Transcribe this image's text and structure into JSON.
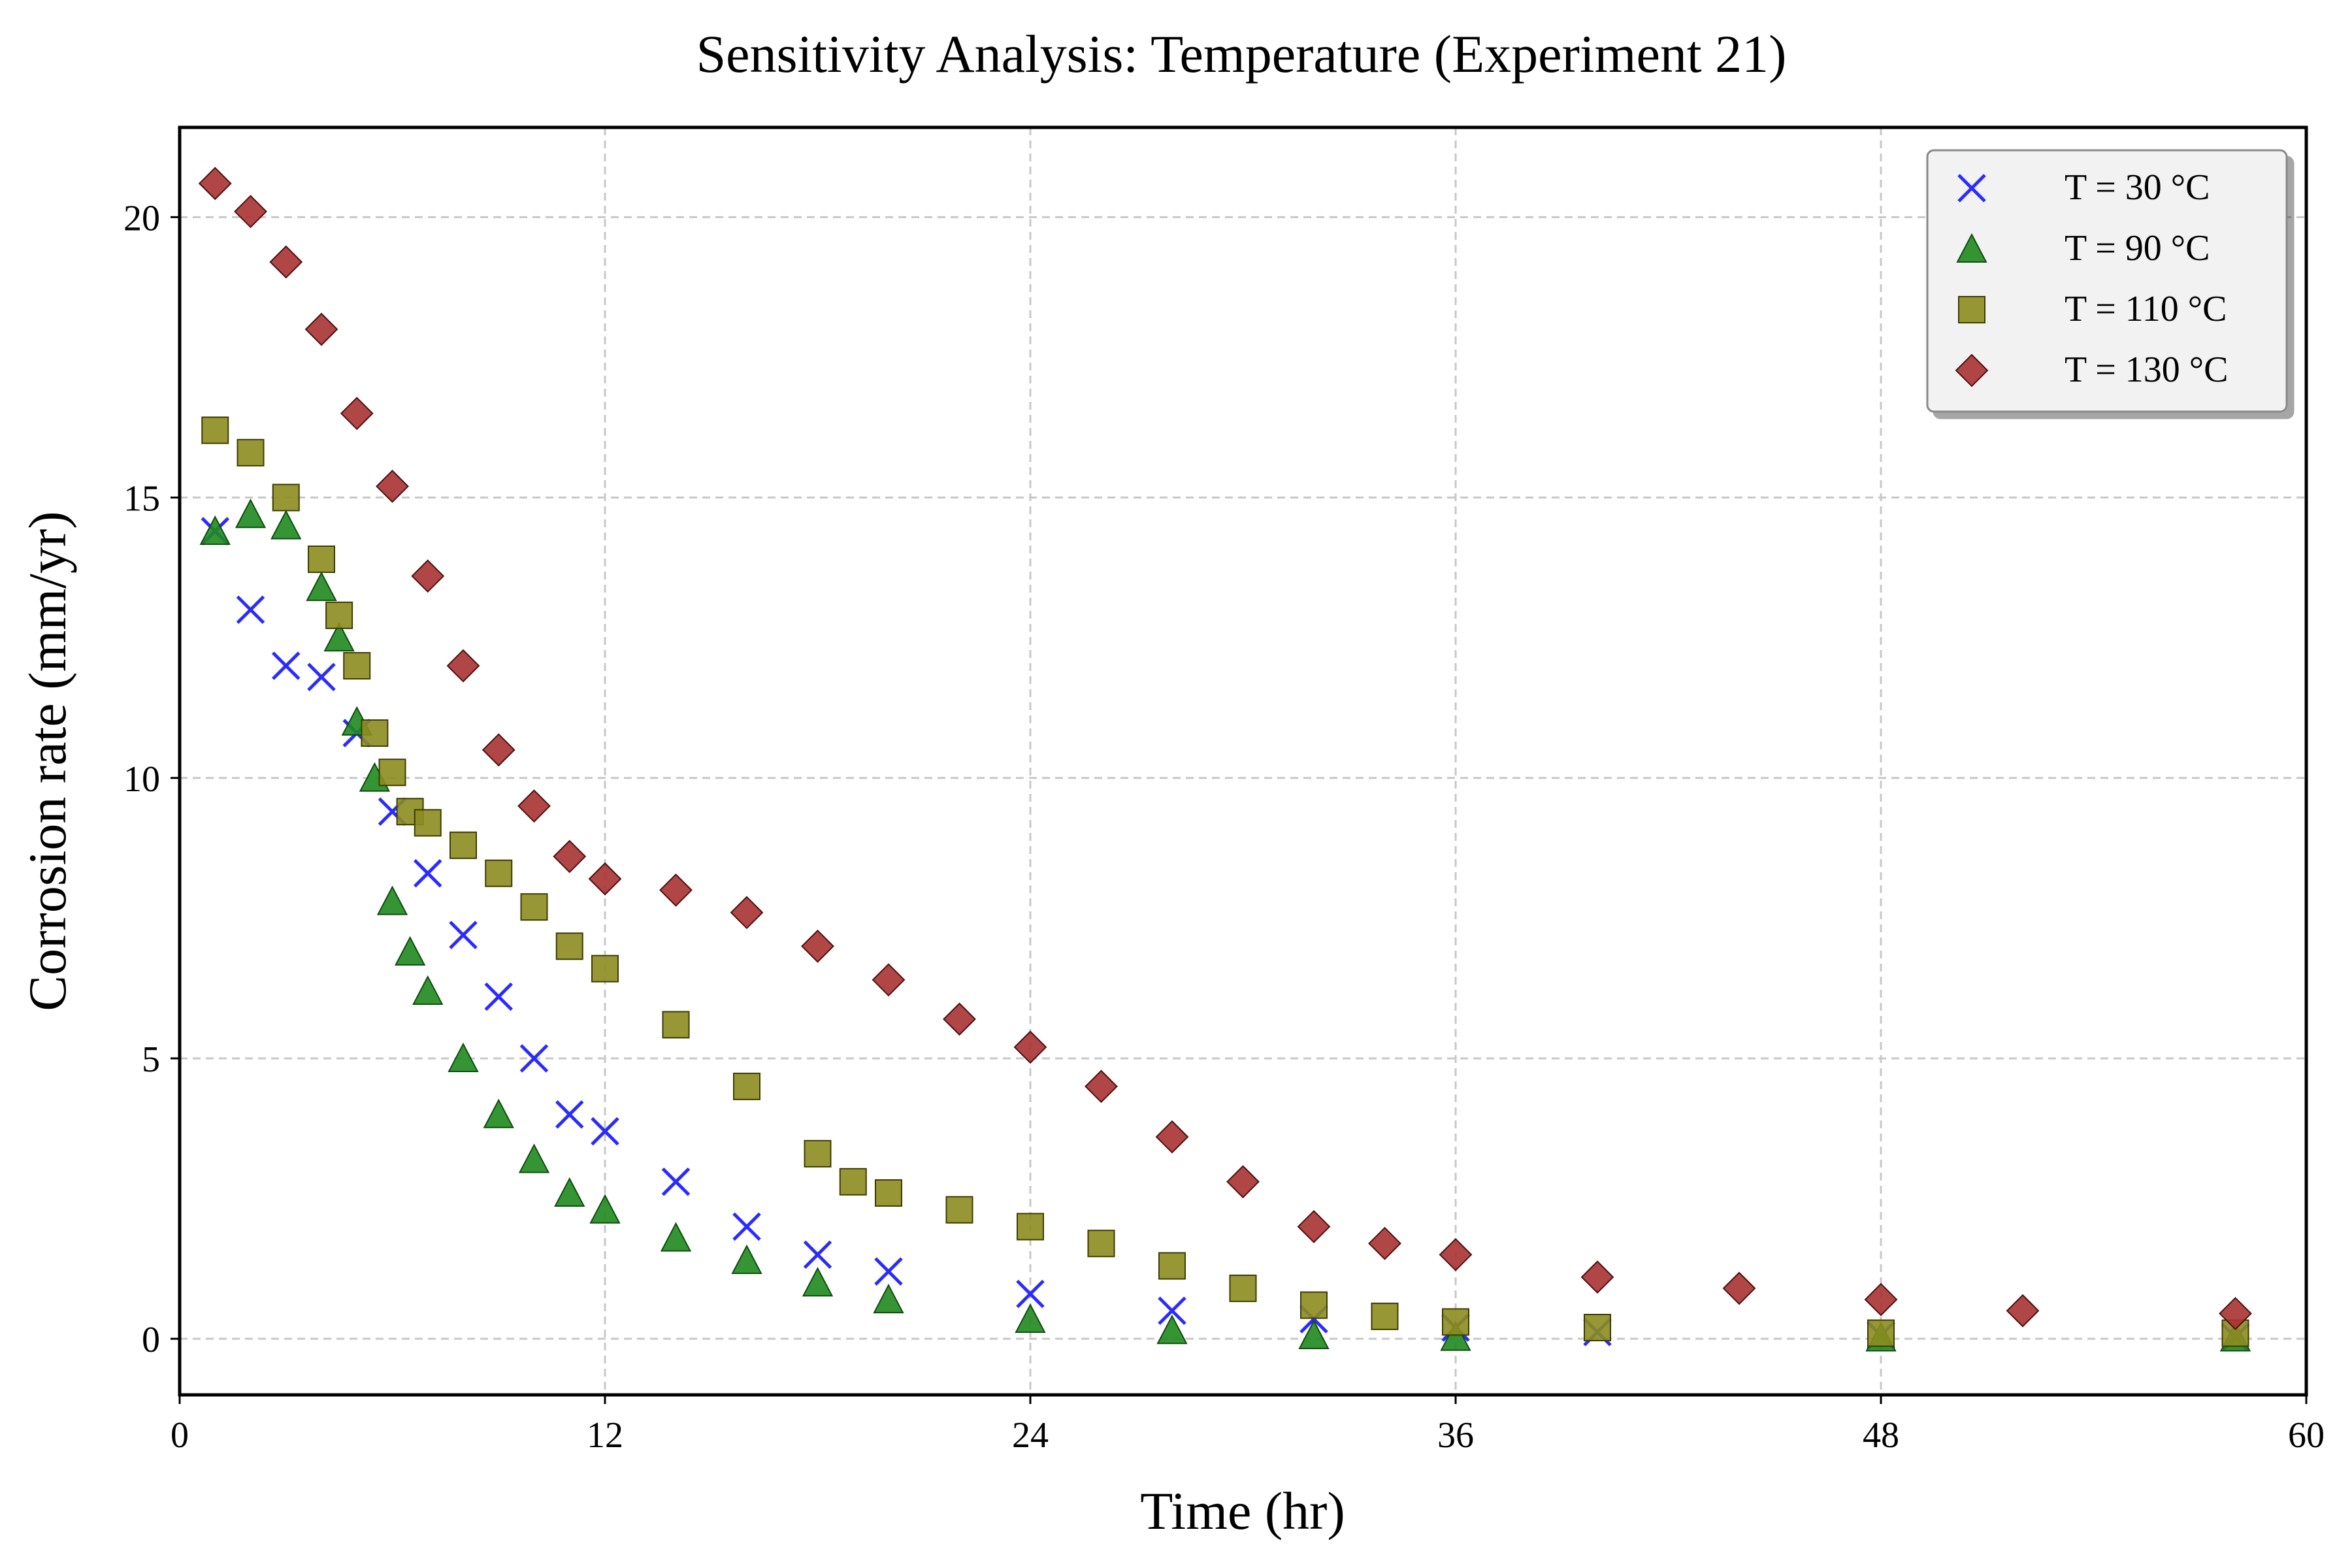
{
  "chart_data": {
    "type": "scatter",
    "title": "Sensitivity Analysis: Temperature (Experiment 21)",
    "xlabel": "Time (hr)",
    "ylabel": "Corrosion rate (mm/yr)",
    "xlim": [
      0,
      60
    ],
    "ylim": [
      -1,
      21.6
    ],
    "xticks": [
      0,
      12,
      24,
      36,
      48,
      60
    ],
    "yticks": [
      0,
      5,
      10,
      15,
      20
    ],
    "grid": true,
    "legend_position": "top-right",
    "series": [
      {
        "name": "T = 30 °C",
        "marker": "x",
        "color": "#2b2bff",
        "x": [
          1,
          2,
          3,
          4,
          5,
          6,
          7,
          8,
          9,
          10,
          11,
          12,
          14,
          16,
          18,
          20,
          24,
          28,
          32,
          36,
          40,
          48,
          58
        ],
        "values": [
          14.4,
          13.0,
          12.0,
          11.8,
          10.8,
          9.4,
          8.3,
          7.2,
          6.1,
          5.0,
          4.0,
          3.7,
          2.8,
          2.0,
          1.5,
          1.2,
          0.8,
          0.5,
          0.35,
          0.2,
          0.12,
          0.06,
          0.03
        ]
      },
      {
        "name": "T = 90 °C",
        "marker": "triangle",
        "color": "#1f8a1f",
        "x": [
          1,
          2,
          3,
          4,
          4.5,
          5,
          5.5,
          6,
          6.5,
          7,
          8,
          9,
          10,
          11,
          12,
          14,
          16,
          18,
          20,
          24,
          28,
          32,
          36,
          48,
          58
        ],
        "values": [
          14.4,
          14.7,
          14.5,
          13.4,
          12.5,
          11.0,
          10.0,
          7.8,
          6.9,
          6.2,
          5.0,
          4.0,
          3.2,
          2.6,
          2.3,
          1.8,
          1.4,
          1.0,
          0.7,
          0.35,
          0.15,
          0.06,
          0.03,
          0.02,
          0.02
        ]
      },
      {
        "name": "T = 110 °C",
        "marker": "square",
        "color": "#8c8c1f",
        "x": [
          1,
          2,
          3,
          4,
          4.5,
          5,
          5.5,
          6,
          6.5,
          7,
          8,
          9,
          10,
          11,
          12,
          14,
          16,
          18,
          19,
          20,
          22,
          24,
          26,
          28,
          30,
          32,
          34,
          36,
          40,
          48,
          58
        ],
        "values": [
          16.2,
          15.8,
          15.0,
          13.9,
          12.9,
          12.0,
          10.8,
          10.1,
          9.4,
          9.2,
          8.8,
          8.3,
          7.7,
          7.0,
          6.6,
          5.6,
          4.5,
          3.3,
          2.8,
          2.6,
          2.3,
          2.0,
          1.7,
          1.3,
          0.9,
          0.6,
          0.4,
          0.3,
          0.2,
          0.1,
          0.1
        ]
      },
      {
        "name": "T = 130 °C",
        "marker": "diamond",
        "color": "#a83232",
        "x": [
          1,
          2,
          3,
          4,
          5,
          6,
          7,
          8,
          9,
          10,
          11,
          12,
          14,
          16,
          18,
          20,
          22,
          24,
          26,
          28,
          30,
          32,
          34,
          36,
          40,
          44,
          48,
          52,
          58
        ],
        "values": [
          20.6,
          20.1,
          19.2,
          18.0,
          16.5,
          15.2,
          13.6,
          12.0,
          10.5,
          9.5,
          8.6,
          8.2,
          8.0,
          7.6,
          7.0,
          6.4,
          5.7,
          5.2,
          4.5,
          3.6,
          2.8,
          2.0,
          1.7,
          1.5,
          1.1,
          0.9,
          0.7,
          0.5,
          0.45
        ]
      }
    ]
  }
}
